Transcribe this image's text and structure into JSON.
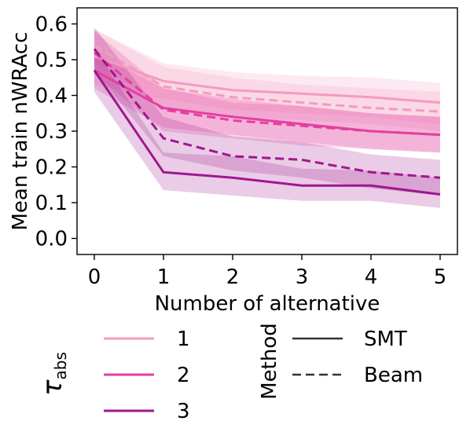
{
  "chart_data": {
    "type": "line",
    "xlabel": "Number of alternative",
    "ylabel": "Mean train nWRAcc",
    "x": [
      0,
      1,
      2,
      3,
      4,
      5
    ],
    "xlim": [
      -0.25,
      5.25
    ],
    "ylim": [
      -0.045,
      0.645
    ],
    "xticks": [
      "0",
      "1",
      "2",
      "3",
      "4",
      "5"
    ],
    "yticks": [
      "0.0",
      "0.1",
      "0.2",
      "0.3",
      "0.4",
      "0.5",
      "0.6"
    ],
    "grid": false,
    "legend_placement": "bottom",
    "legend": {
      "hue_title": "τ",
      "hue_title_sub": "abs",
      "hue_entries": [
        "1",
        "2",
        "3"
      ],
      "style_title": "Method",
      "style_entries": [
        "SMT",
        "Beam"
      ]
    },
    "colors": {
      "1": "#f59bbd",
      "2": "#e43fa0",
      "3": "#a0168f"
    },
    "series": [
      {
        "tau": "1",
        "method": "SMT",
        "values": [
          0.51,
          0.44,
          0.415,
          0.405,
          0.395,
          0.38
        ],
        "lower": [
          0.43,
          0.39,
          0.36,
          0.35,
          0.34,
          0.32
        ],
        "upper": [
          0.585,
          0.49,
          0.465,
          0.455,
          0.45,
          0.435
        ]
      },
      {
        "tau": "1",
        "method": "Beam",
        "values": [
          0.54,
          0.425,
          0.395,
          0.38,
          0.365,
          0.355
        ],
        "lower": [
          0.49,
          0.37,
          0.34,
          0.33,
          0.32,
          0.3
        ],
        "upper": [
          0.585,
          0.48,
          0.45,
          0.43,
          0.42,
          0.41
        ]
      },
      {
        "tau": "2",
        "method": "SMT",
        "values": [
          0.47,
          0.365,
          0.34,
          0.32,
          0.3,
          0.29
        ],
        "lower": [
          0.42,
          0.31,
          0.29,
          0.27,
          0.25,
          0.24
        ],
        "upper": [
          0.52,
          0.42,
          0.39,
          0.37,
          0.35,
          0.34
        ]
      },
      {
        "tau": "2",
        "method": "Beam",
        "values": [
          0.52,
          0.36,
          0.33,
          0.315,
          0.3,
          0.29
        ],
        "lower": [
          0.46,
          0.3,
          0.28,
          0.26,
          0.25,
          0.24
        ],
        "upper": [
          0.58,
          0.42,
          0.38,
          0.37,
          0.35,
          0.34
        ]
      },
      {
        "tau": "3",
        "method": "SMT",
        "values": [
          0.47,
          0.185,
          0.17,
          0.148,
          0.148,
          0.123
        ],
        "lower": [
          0.41,
          0.135,
          0.12,
          0.105,
          0.105,
          0.085
        ],
        "upper": [
          0.53,
          0.24,
          0.23,
          0.195,
          0.19,
          0.17
        ]
      },
      {
        "tau": "3",
        "method": "Beam",
        "values": [
          0.53,
          0.28,
          0.23,
          0.22,
          0.185,
          0.17
        ],
        "lower": [
          0.47,
          0.23,
          0.19,
          0.17,
          0.14,
          0.12
        ],
        "upper": [
          0.59,
          0.34,
          0.285,
          0.27,
          0.235,
          0.22
        ]
      }
    ]
  }
}
